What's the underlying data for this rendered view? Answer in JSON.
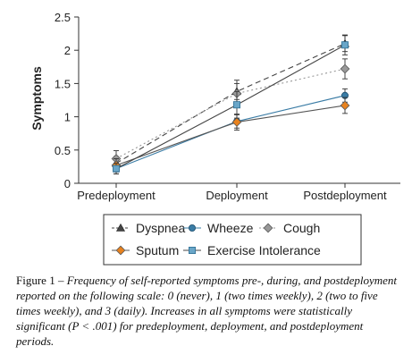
{
  "chart_data": {
    "type": "line",
    "ylabel": "Symptoms",
    "xlabel": "",
    "title": "",
    "ylim": [
      0,
      2.5
    ],
    "yticks": [
      "0",
      "0.5",
      "1",
      "1.5",
      "2",
      "2.5"
    ],
    "ytick_values": [
      0,
      0.5,
      1,
      1.5,
      2,
      2.5
    ],
    "categories": [
      "Predeployment",
      "Deployment",
      "Postdeployment"
    ],
    "legend_position": "bottom",
    "series": [
      {
        "name": "Dyspnea",
        "values": [
          0.3,
          1.38,
          2.1
        ],
        "errors": [
          0.1,
          0.12,
          0.12
        ],
        "color": "#444444",
        "dash": "6,4",
        "marker": "triangle"
      },
      {
        "name": "Wheeze",
        "values": [
          0.22,
          0.93,
          1.32
        ],
        "errors": [
          0.08,
          0.1,
          0.1
        ],
        "color": "#3a7ca5",
        "dash": "none",
        "marker": "circle"
      },
      {
        "name": "Cough",
        "values": [
          0.37,
          1.35,
          1.72
        ],
        "errors": [
          0.12,
          0.2,
          0.15
        ],
        "color": "#999999",
        "dash": "2,3",
        "marker": "diamond"
      },
      {
        "name": "Sputum",
        "values": [
          0.27,
          0.92,
          1.17
        ],
        "errors": [
          0.1,
          0.12,
          0.12
        ],
        "color": "#e8821e",
        "dash": "none",
        "marker": "diamond"
      },
      {
        "name": "Exercise Intolerance",
        "values": [
          0.22,
          1.18,
          2.08
        ],
        "errors": [
          0.08,
          0.2,
          0.15
        ],
        "color": "#6aa6c8",
        "dash": "none",
        "marker": "square"
      }
    ]
  },
  "caption": {
    "label": "Figure 1",
    "text": " – Frequency of self-reported symptoms pre-, during, and postdeployment reported on the following scale: 0 (never), 1 (two times weekly), 2 (two to five times weekly), and 3 (daily). Increases in all symptoms were statistically significant (P < .001) for predeployment, deployment, and postdeployment periods."
  }
}
